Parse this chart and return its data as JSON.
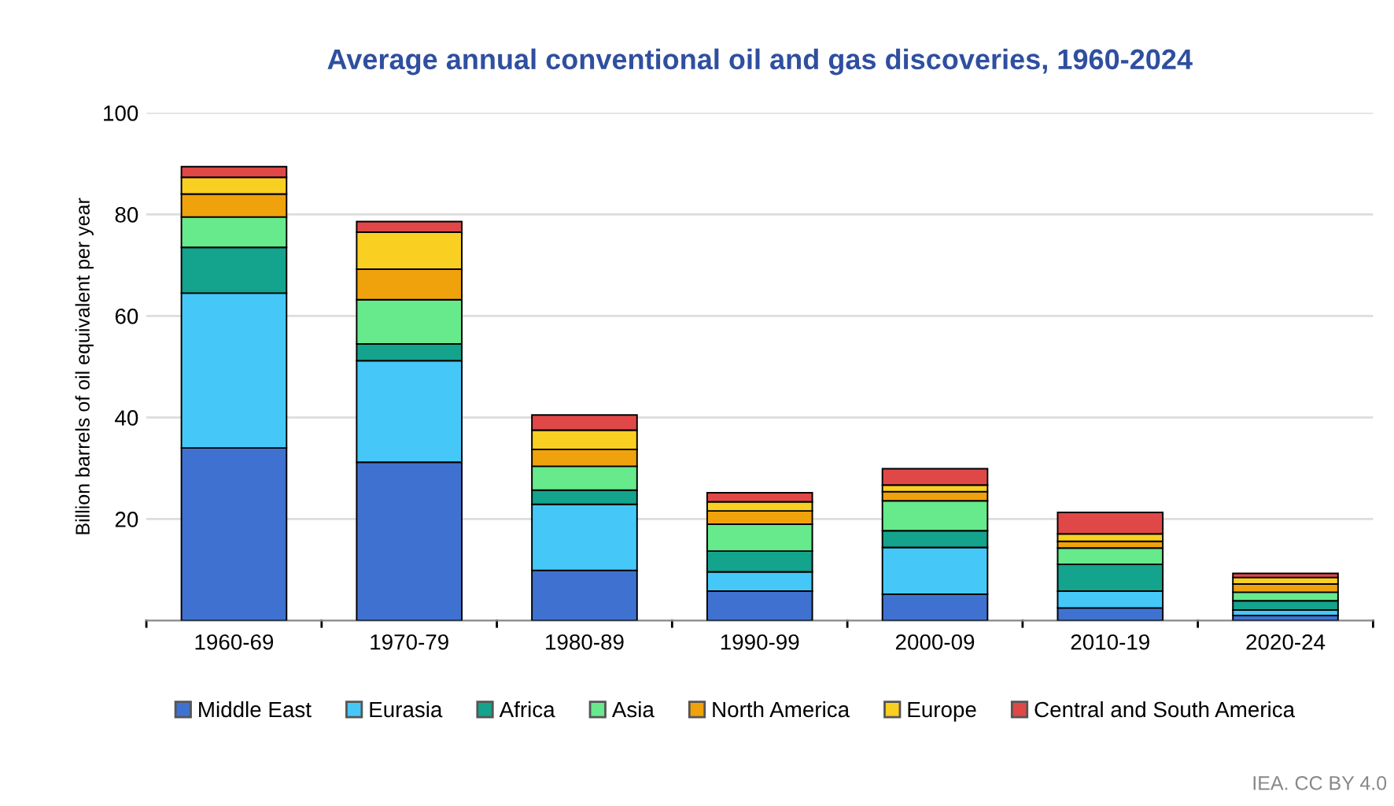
{
  "chart_data": {
    "type": "bar",
    "title": "Average annual conventional oil and gas discoveries, 1960-2024",
    "ylabel": "Billion barrels of oil equivalent per year",
    "categories": [
      "1960-69",
      "1970-79",
      "1980-89",
      "1990-99",
      "2000-09",
      "2010-19",
      "2020-24"
    ],
    "stacked": true,
    "series": [
      {
        "name": "Middle East",
        "color": "#3f72d0",
        "values": [
          34,
          31.2,
          9.9,
          5.8,
          5.2,
          2.5,
          1
        ]
      },
      {
        "name": "Eurasia",
        "color": "#45c8f7",
        "values": [
          30.5,
          20,
          13,
          3.8,
          9.2,
          3.3,
          1.1
        ]
      },
      {
        "name": "Africa",
        "color": "#14a38c",
        "values": [
          9,
          3.3,
          2.8,
          4.1,
          3.3,
          5.3,
          1.8
        ]
      },
      {
        "name": "Asia",
        "color": "#66ea8c",
        "values": [
          6,
          8.7,
          4.7,
          5.3,
          5.9,
          3.2,
          1.7
        ]
      },
      {
        "name": "North America",
        "color": "#f0a20c",
        "values": [
          4.5,
          6,
          3.3,
          2.6,
          1.8,
          1.3,
          1.6
        ]
      },
      {
        "name": "Europe",
        "color": "#f9cf22",
        "values": [
          3.3,
          7.3,
          3.8,
          1.8,
          1.3,
          1.5,
          1.3
        ]
      },
      {
        "name": "Central and South America",
        "color": "#e04848",
        "values": [
          2.1,
          2.1,
          3,
          1.8,
          3.2,
          4.2,
          0.8
        ]
      }
    ],
    "ylim": [
      0,
      100
    ],
    "yticks": [
      20,
      40,
      60,
      80,
      100
    ],
    "grid": "y",
    "legend": "bottom",
    "annotations": [
      "IEA. CC BY 4.0"
    ]
  }
}
